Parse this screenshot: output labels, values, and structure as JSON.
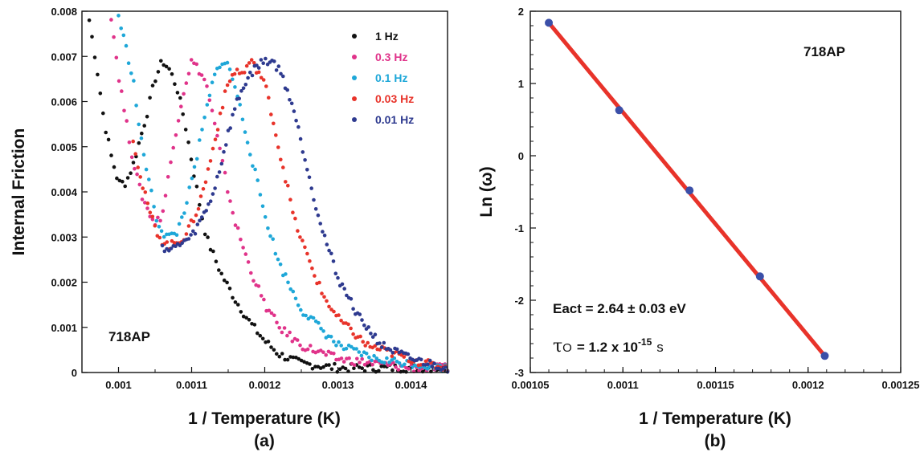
{
  "chart_data": [
    {
      "type": "scatter",
      "panel_label": "(a)",
      "xlabel": "1 / Temperature (K)",
      "ylabel": "Internal Friction",
      "xlim": [
        0.00095,
        0.00145
      ],
      "ylim": [
        0,
        0.008
      ],
      "x_ticks": [
        "0.001",
        "0.0011",
        "0.0012",
        "0.0013",
        "0.0014"
      ],
      "y_ticks": [
        "0",
        "0.001",
        "0.002",
        "0.003",
        "0.004",
        "0.005",
        "0.006",
        "0.007",
        "0.008"
      ],
      "annotation": "718AP",
      "grid": false,
      "legend_position": "top-right",
      "series": [
        {
          "name": "1 Hz",
          "color": "#111111",
          "x": [
            0.00096,
            0.00098,
            0.001,
            0.00102,
            0.00104,
            0.00106,
            0.00108,
            0.0011,
            0.00112,
            0.00115,
            0.00118,
            0.0012,
            0.00125,
            0.00135,
            0.00145
          ],
          "y": [
            0.0078,
            0.0056,
            0.0042,
            0.0046,
            0.0062,
            0.0069,
            0.0063,
            0.0047,
            0.003,
            0.0018,
            0.0009,
            0.0005,
            0.0002,
            0.0001,
            0.0001
          ]
        },
        {
          "name": "0.3 Hz",
          "color": "#e0338a",
          "x": [
            0.00099,
            0.00101,
            0.00103,
            0.00105,
            0.00107,
            0.00109,
            0.0011,
            0.00112,
            0.00114,
            0.00116,
            0.00118,
            0.0012,
            0.00123,
            0.00127,
            0.00135,
            0.00145
          ],
          "y": [
            0.0079,
            0.0056,
            0.004,
            0.0033,
            0.0045,
            0.0063,
            0.0069,
            0.0064,
            0.0048,
            0.0033,
            0.0023,
            0.0015,
            0.0008,
            0.0004,
            0.0002,
            0.0001
          ]
        },
        {
          "name": "0.1 Hz",
          "color": "#1ea7d8",
          "x": [
            0.001,
            0.00102,
            0.00104,
            0.00106,
            0.00108,
            0.0011,
            0.00112,
            0.00114,
            0.00116,
            0.00118,
            0.0012,
            0.00122,
            0.00125,
            0.0013,
            0.00135,
            0.00145
          ],
          "y": [
            0.0079,
            0.0065,
            0.0044,
            0.0031,
            0.0031,
            0.0042,
            0.0058,
            0.0069,
            0.0063,
            0.0049,
            0.0035,
            0.0024,
            0.0014,
            0.0006,
            0.0003,
            0.0001
          ]
        },
        {
          "name": "0.03 Hz",
          "color": "#e8332a",
          "x": [
            0.00102,
            0.00104,
            0.00106,
            0.00108,
            0.0011,
            0.00112,
            0.00114,
            0.00116,
            0.00118,
            0.0012,
            0.00122,
            0.00124,
            0.00127,
            0.0013,
            0.00134,
            0.00138,
            0.00145
          ],
          "y": [
            0.0052,
            0.0037,
            0.0029,
            0.0029,
            0.0033,
            0.0043,
            0.0058,
            0.0067,
            0.0069,
            0.0064,
            0.0049,
            0.0034,
            0.0021,
            0.0012,
            0.0006,
            0.0004,
            0.0001
          ]
        },
        {
          "name": "0.01 Hz",
          "color": "#2e3a8f",
          "x": [
            0.00106,
            0.00108,
            0.0011,
            0.00112,
            0.00114,
            0.00116,
            0.00118,
            0.0012,
            0.00122,
            0.00124,
            0.00126,
            0.00128,
            0.0013,
            0.00133,
            0.00136,
            0.0014,
            0.00145
          ],
          "y": [
            0.0028,
            0.0028,
            0.003,
            0.0036,
            0.0046,
            0.0059,
            0.0066,
            0.0069,
            0.0067,
            0.0058,
            0.0044,
            0.0031,
            0.0021,
            0.0012,
            0.0006,
            0.0003,
            0.0001
          ]
        }
      ],
      "curve_samples": [
        {
          "x": [
            0.00096,
            0.00097,
            0.00098,
            0.00099,
            0.001,
            0.00101,
            0.00102,
            0.00103,
            0.00104,
            0.00105,
            0.00106,
            0.00107,
            0.00108,
            0.00109,
            0.0011,
            0.00111,
            0.00112,
            0.00114,
            0.00116,
            0.00118,
            0.0012,
            0.00122,
            0.00125,
            0.0013,
            0.00135,
            0.0014,
            0.00145
          ],
          "y": [
            0.0078,
            0.0068,
            0.0056,
            0.0048,
            0.0042,
            0.0042,
            0.0046,
            0.0052,
            0.0058,
            0.0065,
            0.0069,
            0.0067,
            0.0063,
            0.0056,
            0.0047,
            0.0038,
            0.003,
            0.0022,
            0.0016,
            0.0011,
            0.0007,
            0.0004,
            0.0002,
            0.0001,
            0.0001,
            0.0001,
            0.0001
          ]
        },
        {
          "x": [
            0.00099,
            0.001,
            0.00101,
            0.00102,
            0.00103,
            0.00104,
            0.00105,
            0.00106,
            0.00107,
            0.00108,
            0.00109,
            0.0011,
            0.00111,
            0.00112,
            0.00113,
            0.00114,
            0.00115,
            0.00116,
            0.00118,
            0.0012,
            0.00122,
            0.00125,
            0.0013,
            0.00135,
            0.0014,
            0.00145
          ],
          "y": [
            0.0079,
            0.0066,
            0.0056,
            0.0047,
            0.004,
            0.0036,
            0.0033,
            0.0035,
            0.0045,
            0.0055,
            0.0063,
            0.0069,
            0.0067,
            0.0064,
            0.0056,
            0.0048,
            0.004,
            0.0033,
            0.0023,
            0.0015,
            0.001,
            0.0006,
            0.0003,
            0.0002,
            0.0001,
            0.0001
          ]
        },
        {
          "x": [
            0.001,
            0.00101,
            0.00102,
            0.00103,
            0.00104,
            0.00105,
            0.00106,
            0.00107,
            0.00108,
            0.00109,
            0.0011,
            0.00111,
            0.00112,
            0.00113,
            0.00114,
            0.00115,
            0.00116,
            0.00117,
            0.00118,
            0.00119,
            0.0012,
            0.00122,
            0.00125,
            0.0013,
            0.00135,
            0.0014,
            0.00145
          ],
          "y": [
            0.0079,
            0.0072,
            0.0065,
            0.0052,
            0.0044,
            0.0035,
            0.0031,
            0.003,
            0.0031,
            0.0036,
            0.0042,
            0.005,
            0.0058,
            0.0065,
            0.0069,
            0.0068,
            0.0063,
            0.0056,
            0.0049,
            0.0042,
            0.0035,
            0.0024,
            0.0014,
            0.0006,
            0.0003,
            0.0002,
            0.0001
          ]
        },
        {
          "x": [
            0.00102,
            0.00103,
            0.00104,
            0.00105,
            0.00106,
            0.00107,
            0.00108,
            0.00109,
            0.0011,
            0.00111,
            0.00112,
            0.00113,
            0.00114,
            0.00115,
            0.00116,
            0.00117,
            0.00118,
            0.00119,
            0.0012,
            0.00121,
            0.00122,
            0.00123,
            0.00124,
            0.00126,
            0.00128,
            0.0013,
            0.00134,
            0.00138,
            0.00142,
            0.00145
          ],
          "y": [
            0.0052,
            0.0043,
            0.0037,
            0.0032,
            0.0029,
            0.0028,
            0.0029,
            0.003,
            0.0033,
            0.0037,
            0.0043,
            0.005,
            0.0058,
            0.0064,
            0.0067,
            0.0066,
            0.0069,
            0.0067,
            0.0064,
            0.0057,
            0.0049,
            0.0042,
            0.0034,
            0.0025,
            0.0017,
            0.0012,
            0.0006,
            0.0004,
            0.0002,
            0.0001
          ]
        },
        {
          "x": [
            0.00106,
            0.00107,
            0.00108,
            0.00109,
            0.0011,
            0.00111,
            0.00112,
            0.00113,
            0.00114,
            0.00115,
            0.00116,
            0.00117,
            0.00118,
            0.00119,
            0.0012,
            0.00121,
            0.00122,
            0.00123,
            0.00124,
            0.00125,
            0.00126,
            0.00127,
            0.00128,
            0.0013,
            0.00133,
            0.00136,
            0.0014,
            0.00145
          ],
          "y": [
            0.0028,
            0.0027,
            0.0028,
            0.0029,
            0.003,
            0.0033,
            0.0036,
            0.004,
            0.0046,
            0.0053,
            0.0059,
            0.0063,
            0.0066,
            0.0068,
            0.0069,
            0.0069,
            0.0067,
            0.0063,
            0.0058,
            0.0051,
            0.0044,
            0.0037,
            0.0031,
            0.0021,
            0.0012,
            0.0006,
            0.0003,
            0.0001
          ]
        }
      ]
    },
    {
      "type": "scatter",
      "panel_label": "(b)",
      "xlabel": "1 / Temperature (K)",
      "ylabel": "Ln (ω)",
      "xlim": [
        0.00105,
        0.00125
      ],
      "ylim": [
        -3,
        2
      ],
      "x_ticks": [
        "0.00105",
        "0.0011",
        "0.00115",
        "0.0012",
        "0.00125"
      ],
      "y_ticks": [
        "-3",
        "-2",
        "-1",
        "0",
        "1",
        "2"
      ],
      "annotation": "718AP",
      "eact_text": "Eact = 2.64 ± 0.03 eV",
      "tau_symbol": "τ",
      "tau_subscript": "O",
      "tau_text": "= 1.2 x 10",
      "tau_exp": "-15",
      "tau_unit": "s",
      "grid": false,
      "points": {
        "name": "",
        "color": "#3b4fa8",
        "x": [
          0.00106,
          0.001098,
          0.001136,
          0.001174,
          0.001209
        ],
        "y": [
          1.84,
          0.63,
          -0.48,
          -1.67,
          -2.77
        ]
      },
      "fit_line": {
        "color": "#e8332a",
        "x": [
          0.00106,
          0.001209
        ],
        "y": [
          1.84,
          -2.77
        ]
      }
    }
  ]
}
